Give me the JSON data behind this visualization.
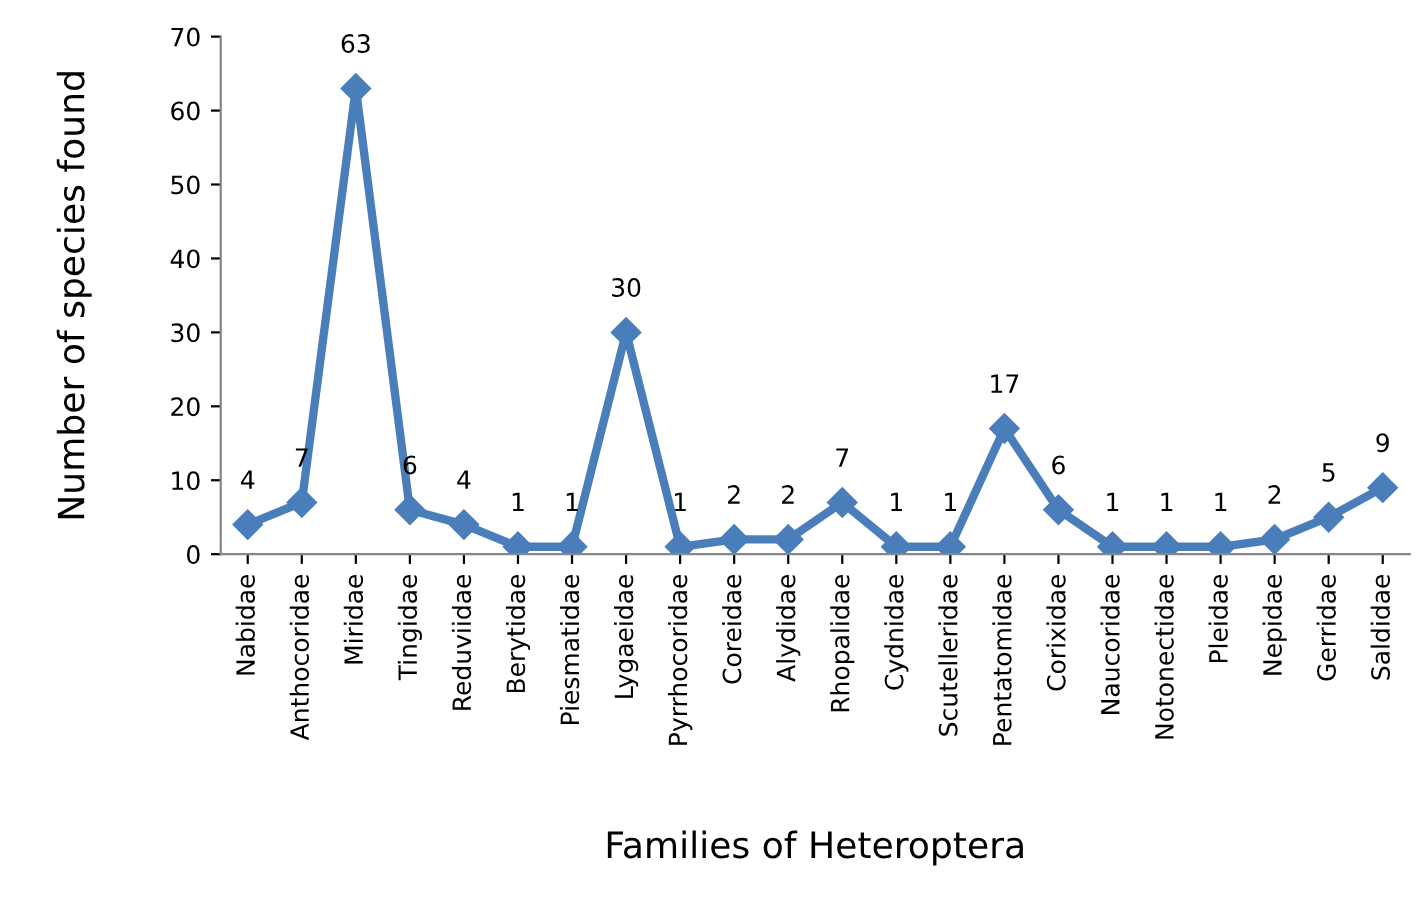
{
  "chart_data": {
    "type": "line",
    "xlabel": "Families of Heteroptera",
    "ylabel": "Number of species found",
    "categories": [
      "Nabidae",
      "Anthocoridae",
      "Miridae",
      "Tingidae",
      "Reduviidae",
      "Berytidae",
      "Piesmatidae",
      "Lygaeidae",
      "Pyrrhocoridae",
      "Coreidae",
      "Alydidae",
      "Rhopalidae",
      "Cydnidae",
      "Scutelleridae",
      "Pentatomidae",
      "Corixidae",
      "Naucoridae",
      "Notonectidae",
      "Pleidae",
      "Nepidae",
      "Gerridae",
      "Saldidae"
    ],
    "series": [
      {
        "color": "#4a7ebb",
        "values": [
          4,
          7,
          63,
          6,
          4,
          1,
          1,
          30,
          1,
          2,
          2,
          7,
          1,
          1,
          17,
          6,
          1,
          1,
          1,
          2,
          5,
          9
        ]
      }
    ],
    "ylim": [
      0,
      70
    ],
    "yticks": [
      0,
      10,
      20,
      30,
      40,
      50,
      60,
      70
    ],
    "grid": false,
    "marker": "diamond",
    "line_style": "solid",
    "data_labels": true
  }
}
